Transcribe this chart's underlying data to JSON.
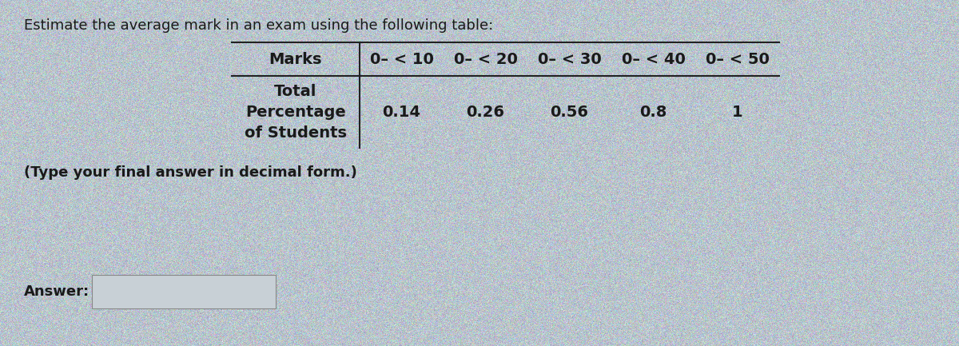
{
  "title": "Estimate the average mark in an exam using the following table:",
  "col_headers": [
    "0– < 10",
    "0– < 20",
    "0– < 30",
    "0– < 40",
    "0– < 50"
  ],
  "values": [
    "0.14",
    "0.26",
    "0.56",
    "0.8",
    "1"
  ],
  "row_label_lines": [
    "Total",
    "Percentage",
    "of Students"
  ],
  "marks_label": "Marks",
  "note": "(Type your final answer in decimal form.)",
  "answer_label": "Answer:",
  "bg_color": "#b8bfc4",
  "title_fontsize": 13,
  "header_fontsize": 14,
  "value_fontsize": 14,
  "note_fontsize": 13,
  "answer_fontsize": 13
}
